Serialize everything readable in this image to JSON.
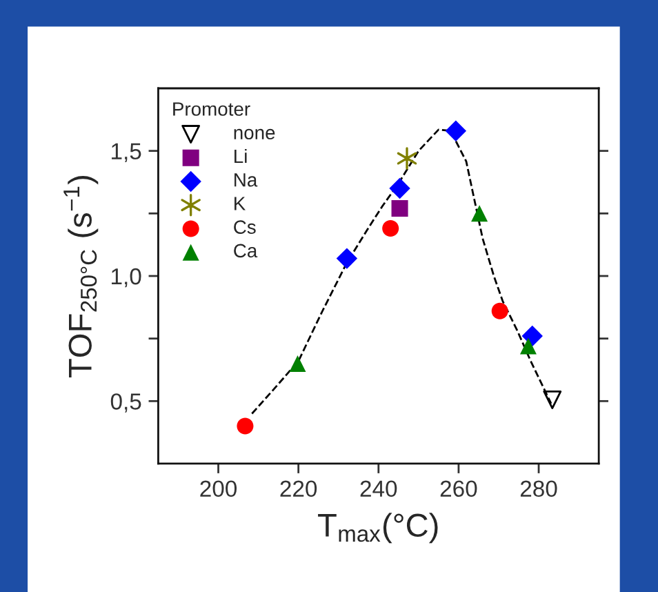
{
  "chart_data": {
    "type": "scatter",
    "xlabel": "T$_{max}$(°C)",
    "ylabel": "TOF$_{250°C}$ (s$^{−1}$)",
    "legend_title": "Promoter",
    "legend": "top left",
    "grid": false,
    "xlim": [
      185,
      295
    ],
    "xticks": [
      200,
      220,
      240,
      260,
      280
    ],
    "ylim": [
      0.25,
      1.75
    ],
    "yticks": [
      {
        "value": 0.5,
        "label": "0,5"
      },
      {
        "value": 0.75,
        "label": null
      },
      {
        "value": 1.0,
        "label": "1,0"
      },
      {
        "value": 1.25,
        "label": null
      },
      {
        "value": 1.5,
        "label": "1,5"
      }
    ],
    "series": [
      {
        "type": "line",
        "color": "#000000",
        "line_style": "dashed",
        "marker": "none",
        "x": [
          208.4,
          214,
          220,
          226,
          232,
          237,
          241,
          245,
          250,
          255,
          258,
          261.9,
          264,
          266,
          268.8,
          271,
          274.7,
          278,
          281,
          283.1
        ],
        "values": [
          0.45,
          0.55,
          0.66,
          0.86,
          1.05,
          1.18,
          1.28,
          1.37,
          1.5,
          1.585,
          1.58,
          1.458,
          1.3,
          1.15,
          1.0,
          0.9,
          0.78,
          0.66,
          0.56,
          0.49
        ]
      },
      {
        "name": "none",
        "color": "#000000",
        "marker": "triangle_down",
        "x": [
          283.4
        ],
        "values": [
          0.505
        ]
      },
      {
        "name": "Li",
        "color": "#800080",
        "marker": "square",
        "x": [
          245.3
        ],
        "values": [
          1.27
        ]
      },
      {
        "name": "Na",
        "color": "#0000ff",
        "marker": "diamond",
        "x": [
          232.1,
          245.3,
          259.3,
          278.4
        ],
        "values": [
          1.07,
          1.35,
          1.58,
          0.76
        ]
      },
      {
        "name": "K",
        "color": "#808000",
        "marker": "cross",
        "x": [
          247.1
        ],
        "values": [
          1.47
        ]
      },
      {
        "name": "Cs",
        "color": "#ff0000",
        "marker": "circle",
        "x": [
          206.7,
          243.0,
          270.3
        ],
        "values": [
          0.4,
          1.19,
          0.86
        ]
      },
      {
        "name": "Ca",
        "color": "#008000",
        "marker": "triangle",
        "x": [
          219.8,
          265.2,
          277.4
        ],
        "values": [
          0.65,
          1.25,
          0.72
        ]
      }
    ]
  }
}
